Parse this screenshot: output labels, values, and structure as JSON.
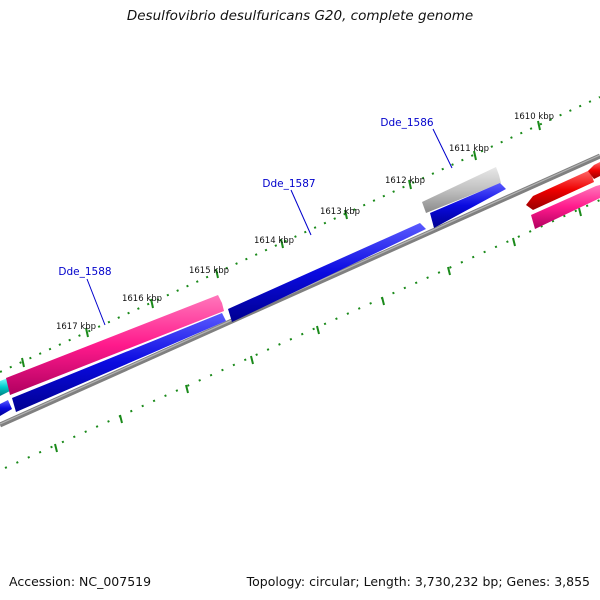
{
  "header": {
    "title": "Desulfovibrio desulfuricans G20, complete genome"
  },
  "footer": {
    "accession": "Accession: NC_007519",
    "topology": "Topology: circular; Length: 3,730,232 bp; Genes: 3,855"
  },
  "kbp_ticks": [
    {
      "label": "1610 kbp",
      "kbp": 1610
    },
    {
      "label": "1611 kbp",
      "kbp": 1611
    },
    {
      "label": "1612 kbp",
      "kbp": 1612
    },
    {
      "label": "1613 kbp",
      "kbp": 1613
    },
    {
      "label": "1614 kbp",
      "kbp": 1614
    },
    {
      "label": "1615 kbp",
      "kbp": 1615
    },
    {
      "label": "1616 kbp",
      "kbp": 1616
    },
    {
      "label": "1617 kbp",
      "kbp": 1617
    }
  ],
  "gene_labels": [
    {
      "text": "Dde_1586"
    },
    {
      "text": "Dde_1587"
    },
    {
      "text": "Dde_1588"
    }
  ],
  "colors": {
    "forward_cds": "#0a0ae0",
    "reverse_feature": "#ff1a8c",
    "rna": "#c0c0c0",
    "red_feature": "#ee0000",
    "cyan_feature": "#00cccc",
    "backbone": "#808080",
    "ticks": "#1a8a1a"
  }
}
